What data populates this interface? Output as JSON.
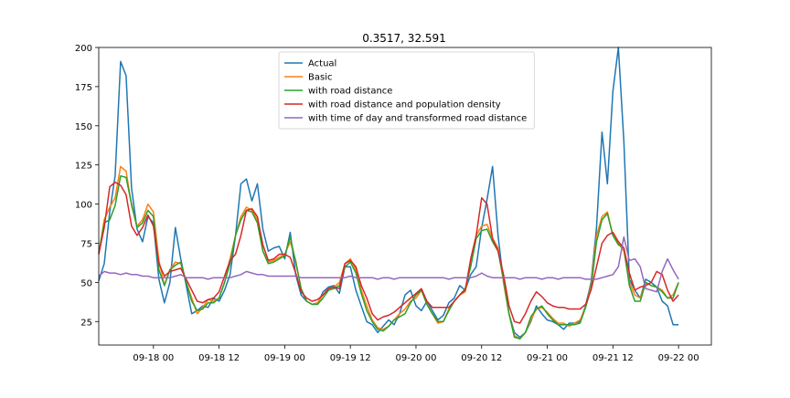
{
  "chart_data": {
    "type": "line",
    "title": "0.3517, 32.591",
    "xlabel": "",
    "ylabel": "",
    "ylim": [
      10,
      200
    ],
    "xlim": [
      "2021-09-17 14:00",
      "2021-09-22 06:00"
    ],
    "yticks": [
      25,
      50,
      75,
      100,
      125,
      150,
      175,
      200
    ],
    "xticks": [
      "09-18 00",
      "09-18 12",
      "09-19 00",
      "09-19 12",
      "09-20 00",
      "09-20 12",
      "09-21 00",
      "09-21 12",
      "09-22 00"
    ],
    "grid": false,
    "legend_position": "top-center",
    "x_start": "2021-09-17 14:00",
    "x_step_hours": 1,
    "series": [
      {
        "name": "Actual",
        "color": "#1f77b4",
        "values": [
          51,
          62,
          95,
          118,
          191,
          182,
          110,
          84,
          76,
          92,
          88,
          52,
          37,
          50,
          85,
          65,
          48,
          30,
          32,
          35,
          34,
          40,
          38,
          45,
          55,
          80,
          113,
          116,
          102,
          113,
          84,
          70,
          72,
          73,
          65,
          82,
          55,
          42,
          38,
          36,
          36,
          44,
          47,
          48,
          43,
          60,
          60,
          45,
          35,
          25,
          23,
          18,
          22,
          26,
          23,
          30,
          42,
          45,
          35,
          32,
          38,
          32,
          26,
          29,
          37,
          40,
          48,
          45,
          55,
          60,
          85,
          103,
          124,
          80,
          50,
          30,
          18,
          15,
          18,
          25,
          35,
          30,
          26,
          25,
          23,
          20,
          24,
          24,
          25,
          35,
          50,
          85,
          146,
          113,
          172,
          200,
          140,
          52,
          45,
          40,
          52,
          50,
          47,
          38,
          35,
          23,
          23
        ]
      },
      {
        "name": "Basic",
        "color": "#ff7f0e",
        "values": [
          68,
          90,
          98,
          104,
          124,
          121,
          99,
          86,
          90,
          100,
          95,
          64,
          48,
          58,
          63,
          62,
          50,
          40,
          30,
          34,
          39,
          38,
          40,
          50,
          65,
          80,
          92,
          98,
          96,
          90,
          70,
          63,
          64,
          66,
          68,
          76,
          64,
          46,
          38,
          36,
          37,
          42,
          46,
          47,
          50,
          62,
          65,
          58,
          45,
          35,
          26,
          21,
          20,
          22,
          26,
          30,
          33,
          38,
          40,
          45,
          36,
          30,
          24,
          25,
          33,
          38,
          42,
          44,
          62,
          80,
          86,
          87,
          78,
          72,
          50,
          30,
          16,
          14,
          18,
          26,
          33,
          34,
          31,
          27,
          24,
          24,
          22,
          24,
          26,
          34,
          48,
          80,
          92,
          95,
          80,
          75,
          70,
          50,
          42,
          40,
          50,
          48,
          47,
          45,
          40,
          42,
          50
        ]
      },
      {
        "name": "with road distance",
        "color": "#2ca02c",
        "values": [
          69,
          88,
          90,
          99,
          118,
          117,
          100,
          85,
          88,
          96,
          92,
          58,
          48,
          58,
          61,
          63,
          50,
          38,
          32,
          33,
          37,
          37,
          40,
          50,
          62,
          80,
          90,
          96,
          95,
          88,
          70,
          62,
          63,
          65,
          67,
          79,
          63,
          46,
          38,
          36,
          36,
          40,
          45,
          46,
          48,
          60,
          63,
          56,
          43,
          32,
          25,
          20,
          19,
          22,
          26,
          28,
          30,
          37,
          42,
          45,
          36,
          30,
          25,
          25,
          32,
          38,
          42,
          46,
          60,
          78,
          83,
          84,
          76,
          70,
          52,
          30,
          15,
          14,
          18,
          28,
          33,
          35,
          30,
          26,
          23,
          23,
          23,
          23,
          24,
          34,
          46,
          76,
          90,
          94,
          80,
          74,
          72,
          48,
          38,
          38,
          50,
          48,
          47,
          44,
          40,
          40,
          50
        ]
      },
      {
        "name": "with road distance and population density",
        "color": "#d62728",
        "values": [
          68,
          85,
          111,
          114,
          112,
          106,
          86,
          80,
          85,
          93,
          86,
          62,
          54,
          57,
          58,
          59,
          52,
          45,
          38,
          37,
          39,
          40,
          44,
          54,
          64,
          68,
          80,
          96,
          97,
          92,
          74,
          64,
          65,
          68,
          68,
          66,
          56,
          44,
          40,
          38,
          39,
          42,
          46,
          47,
          46,
          62,
          64,
          60,
          48,
          40,
          30,
          26,
          28,
          29,
          31,
          34,
          37,
          40,
          43,
          46,
          38,
          34,
          34,
          34,
          34,
          38,
          42,
          45,
          65,
          80,
          104,
          100,
          78,
          70,
          55,
          35,
          25,
          24,
          30,
          38,
          44,
          41,
          37,
          35,
          34,
          34,
          33,
          33,
          33,
          36,
          45,
          60,
          75,
          80,
          82,
          76,
          72,
          56,
          45,
          47,
          48,
          50,
          57,
          55,
          45,
          38,
          42
        ]
      },
      {
        "name": "with time of day and transformed road distance",
        "color": "#9467bd",
        "values": [
          54,
          57,
          56,
          56,
          55,
          56,
          55,
          55,
          54,
          54,
          53,
          53,
          53,
          53,
          54,
          55,
          53,
          53,
          53,
          53,
          52,
          53,
          53,
          53,
          53,
          54,
          55,
          57,
          56,
          55,
          55,
          54,
          54,
          54,
          54,
          54,
          54,
          53,
          53,
          53,
          53,
          53,
          53,
          53,
          53,
          53,
          54,
          53,
          53,
          53,
          53,
          52,
          53,
          53,
          52,
          53,
          53,
          53,
          53,
          53,
          53,
          53,
          53,
          53,
          52,
          53,
          53,
          53,
          53,
          54,
          56,
          54,
          53,
          53,
          53,
          53,
          53,
          52,
          53,
          53,
          53,
          52,
          53,
          53,
          52,
          53,
          53,
          53,
          53,
          52,
          52,
          52,
          53,
          54,
          55,
          60,
          79,
          64,
          65,
          60,
          46,
          45,
          44,
          57,
          65,
          58,
          52
        ]
      }
    ]
  }
}
